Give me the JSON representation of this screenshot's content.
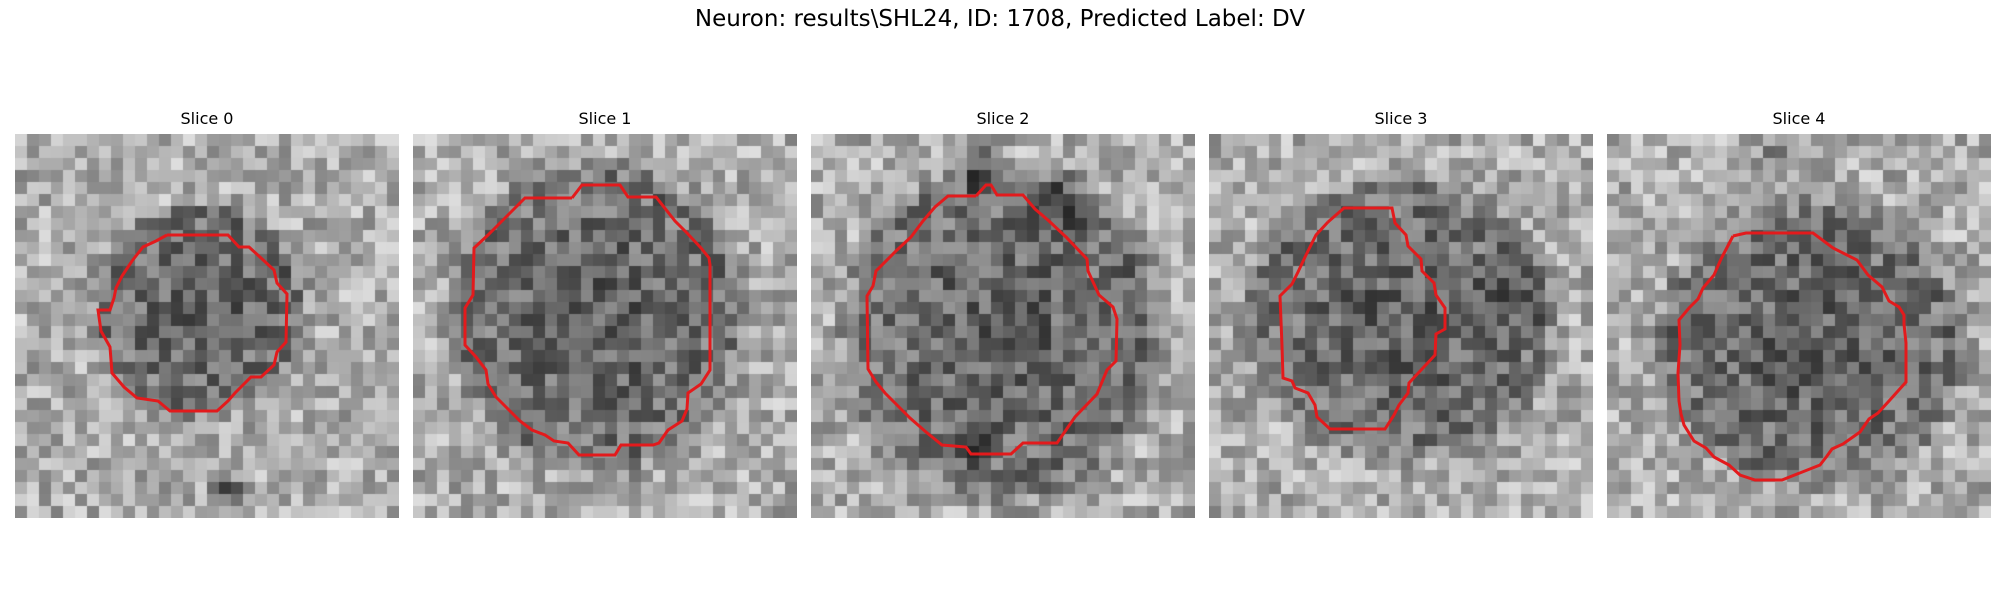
{
  "figure": {
    "suptitle": "Neuron: results\\SHL24, ID: 1708, Predicted Label: DV",
    "contour_color": "#e31a1c",
    "colormap": "gray"
  },
  "panels": [
    {
      "title": "Slice 0"
    },
    {
      "title": "Slice 1"
    },
    {
      "title": "Slice 2"
    },
    {
      "title": "Slice 3"
    },
    {
      "title": "Slice 4"
    }
  ]
}
